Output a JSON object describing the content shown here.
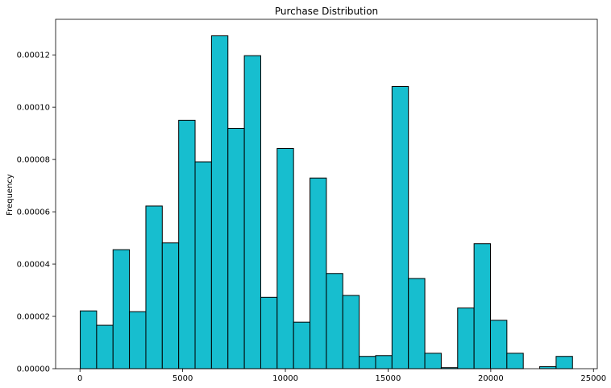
{
  "chart_data": {
    "type": "bar",
    "title": "Purchase Distribution",
    "xlabel": "",
    "ylabel": "Frequency",
    "bin_start": 12,
    "bin_width": 798.93,
    "values": [
      2.21e-05,
      1.66e-05,
      4.55e-05,
      2.18e-05,
      6.22e-05,
      4.81e-05,
      9.5e-05,
      7.91e-05,
      0.0001273,
      9.19e-05,
      0.0001197,
      2.73e-05,
      8.42e-05,
      1.78e-05,
      7.29e-05,
      3.64e-05,
      2.8e-05,
      4.7e-06,
      5e-06,
      0.0001079,
      3.45e-05,
      5.9e-06,
      4e-07,
      2.32e-05,
      4.78e-05,
      1.85e-05,
      5.9e-06,
      0.0,
      8e-07,
      4.7e-06
    ],
    "xlim": [
      -1186,
      25186
    ],
    "ylim": [
      0,
      0.0001336
    ],
    "x_ticks": [
      0,
      5000,
      10000,
      15000,
      20000,
      25000
    ],
    "x_tick_labels": [
      "0",
      "5000",
      "10000",
      "15000",
      "20000",
      "25000"
    ],
    "y_ticks": [
      0,
      2e-05,
      4e-05,
      6e-05,
      8e-05,
      0.0001,
      0.00012
    ],
    "y_tick_labels": [
      "0.00000",
      "0.00002",
      "0.00004",
      "0.00006",
      "0.00008",
      "0.00010",
      "0.00012"
    ],
    "bar_color": "#17becf",
    "edge_color": "#000000",
    "grid": false
  }
}
